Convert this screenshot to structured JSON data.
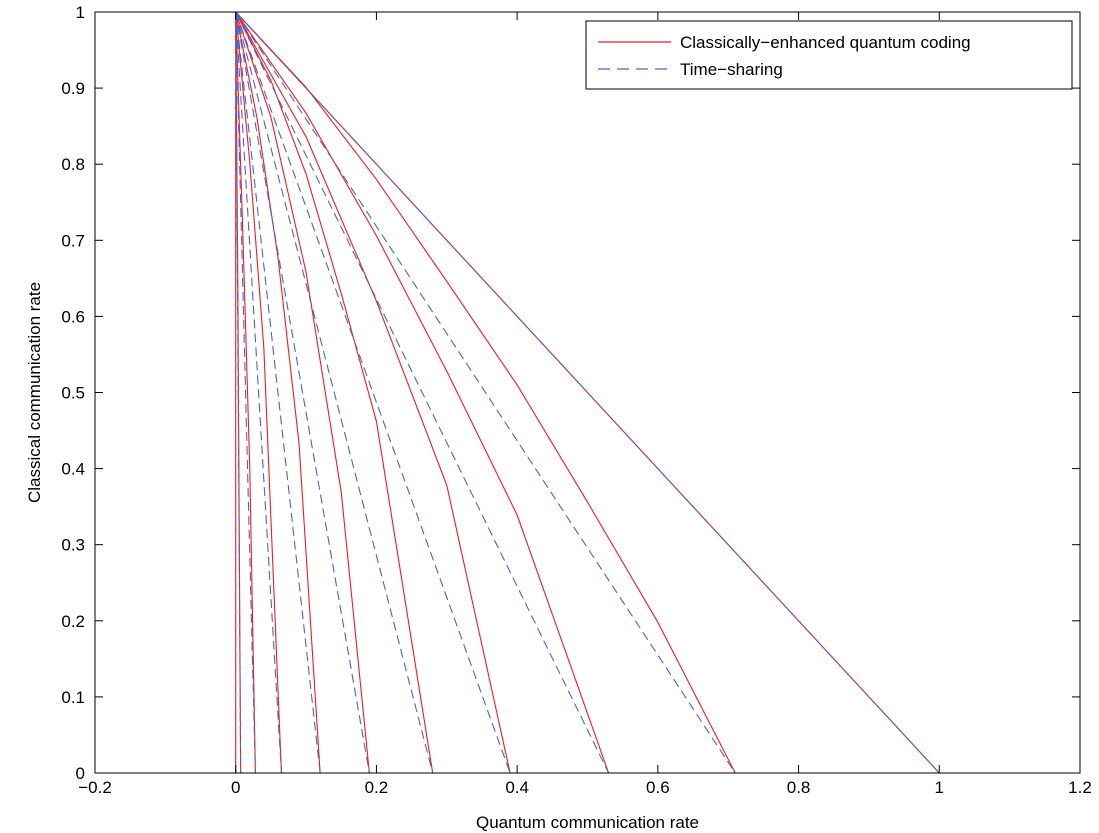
{
  "chart_data": {
    "type": "line",
    "title": "",
    "xlabel": "Quantum communication rate",
    "ylabel": "Classical communication rate",
    "xlim": [
      -0.2,
      1.2
    ],
    "ylim": [
      0,
      1
    ],
    "xticks": [
      -0.2,
      0,
      0.2,
      0.4,
      0.6,
      0.8,
      1,
      1.2
    ],
    "yticks": [
      0,
      0.1,
      0.2,
      0.3,
      0.4,
      0.5,
      0.6,
      0.7,
      0.8,
      0.9,
      1
    ],
    "xtick_labels": [
      "−0.2",
      "0",
      "0.2",
      "0.4",
      "0.6",
      "0.8",
      "1",
      "1.2"
    ],
    "ytick_labels": [
      "0",
      "0.1",
      "0.2",
      "0.3",
      "0.4",
      "0.5",
      "0.6",
      "0.7",
      "0.8",
      "0.9",
      "1"
    ],
    "grid": false,
    "legend_position": "top-right",
    "series_styles": {
      "Classically−enhanced quantum coding": {
        "color": "#ee1c25",
        "dash": "solid"
      },
      "Time−sharing": {
        "color": "#4a64c8",
        "dash": "dashed"
      }
    },
    "legend": [
      {
        "label": "Classically−enhanced quantum coding",
        "color": "#ee1c25",
        "dash": "solid"
      },
      {
        "label": "Time−sharing",
        "color": "#4a64c8",
        "dash": "dashed"
      }
    ],
    "series": [
      {
        "name": "Classically−enhanced quantum coding",
        "family_q0": 1.0,
        "points": [
          [
            0,
            1
          ],
          [
            0.25,
            0.75
          ],
          [
            0.5,
            0.5
          ],
          [
            0.75,
            0.25
          ],
          [
            1,
            0
          ]
        ]
      },
      {
        "name": "Classically−enhanced quantum coding",
        "family_q0": 0.71,
        "points": [
          [
            0,
            1
          ],
          [
            0.1,
            0.901
          ],
          [
            0.2,
            0.78
          ],
          [
            0.3,
            0.646
          ],
          [
            0.4,
            0.51
          ],
          [
            0.5,
            0.356
          ],
          [
            0.6,
            0.198
          ],
          [
            0.71,
            0
          ]
        ]
      },
      {
        "name": "Classically−enhanced quantum coding",
        "family_q0": 0.53,
        "points": [
          [
            0,
            1
          ],
          [
            0.1,
            0.867
          ],
          [
            0.2,
            0.706
          ],
          [
            0.3,
            0.528
          ],
          [
            0.4,
            0.339
          ],
          [
            0.53,
            0
          ]
        ]
      },
      {
        "name": "Classically−enhanced quantum coding",
        "family_q0": 0.39,
        "points": [
          [
            0,
            1
          ],
          [
            0.1,
            0.836
          ],
          [
            0.2,
            0.62
          ],
          [
            0.3,
            0.378
          ],
          [
            0.39,
            0
          ]
        ]
      },
      {
        "name": "Classically−enhanced quantum coding",
        "family_q0": 0.28,
        "points": [
          [
            0,
            1
          ],
          [
            0.05,
            0.91
          ],
          [
            0.1,
            0.787
          ],
          [
            0.15,
            0.63
          ],
          [
            0.2,
            0.462
          ],
          [
            0.28,
            0
          ]
        ]
      },
      {
        "name": "Classically−enhanced quantum coding",
        "family_q0": 0.19,
        "points": [
          [
            0,
            1
          ],
          [
            0.05,
            0.862
          ],
          [
            0.1,
            0.658
          ],
          [
            0.15,
            0.369
          ],
          [
            0.19,
            0
          ]
        ]
      },
      {
        "name": "Classically−enhanced quantum coding",
        "family_q0": 0.12,
        "points": [
          [
            0,
            1
          ],
          [
            0.03,
            0.862
          ],
          [
            0.06,
            0.678
          ],
          [
            0.09,
            0.433
          ],
          [
            0.12,
            0
          ]
        ]
      },
      {
        "name": "Classically−enhanced quantum coding",
        "family_q0": 0.065,
        "points": [
          [
            0,
            1
          ],
          [
            0.02,
            0.802
          ],
          [
            0.04,
            0.558
          ],
          [
            0.065,
            0
          ]
        ]
      },
      {
        "name": "Classically−enhanced quantum coding",
        "family_q0": 0.028,
        "points": [
          [
            0,
            1
          ],
          [
            0.01,
            0.712
          ],
          [
            0.02,
            0.4
          ],
          [
            0.028,
            0
          ]
        ]
      },
      {
        "name": "Classically−enhanced quantum coding",
        "family_q0": 0.007,
        "points": [
          [
            0,
            1
          ],
          [
            0.003,
            0.64
          ],
          [
            0.007,
            0
          ]
        ]
      },
      {
        "name": "Classically−enhanced quantum coding",
        "family_q0": 0.0,
        "points": [
          [
            0,
            1
          ],
          [
            0,
            0
          ]
        ]
      },
      {
        "name": "Time−sharing",
        "family_q0": 1.0,
        "points": [
          [
            0,
            1
          ],
          [
            1,
            0
          ]
        ]
      },
      {
        "name": "Time−sharing",
        "family_q0": 0.71,
        "points": [
          [
            0,
            1
          ],
          [
            0.71,
            0
          ]
        ]
      },
      {
        "name": "Time−sharing",
        "family_q0": 0.53,
        "points": [
          [
            0,
            1
          ],
          [
            0.53,
            0
          ]
        ]
      },
      {
        "name": "Time−sharing",
        "family_q0": 0.39,
        "points": [
          [
            0,
            1
          ],
          [
            0.39,
            0
          ]
        ]
      },
      {
        "name": "Time−sharing",
        "family_q0": 0.28,
        "points": [
          [
            0,
            1
          ],
          [
            0.28,
            0
          ]
        ]
      },
      {
        "name": "Time−sharing",
        "family_q0": 0.19,
        "points": [
          [
            0,
            1
          ],
          [
            0.19,
            0
          ]
        ]
      },
      {
        "name": "Time−sharing",
        "family_q0": 0.12,
        "points": [
          [
            0,
            1
          ],
          [
            0.12,
            0
          ]
        ]
      },
      {
        "name": "Time−sharing",
        "family_q0": 0.065,
        "points": [
          [
            0,
            1
          ],
          [
            0.065,
            0
          ]
        ]
      },
      {
        "name": "Time−sharing",
        "family_q0": 0.028,
        "points": [
          [
            0,
            1
          ],
          [
            0.028,
            0
          ]
        ]
      },
      {
        "name": "Time−sharing",
        "family_q0": 0.007,
        "points": [
          [
            0,
            1
          ],
          [
            0.007,
            0
          ]
        ]
      }
    ]
  }
}
